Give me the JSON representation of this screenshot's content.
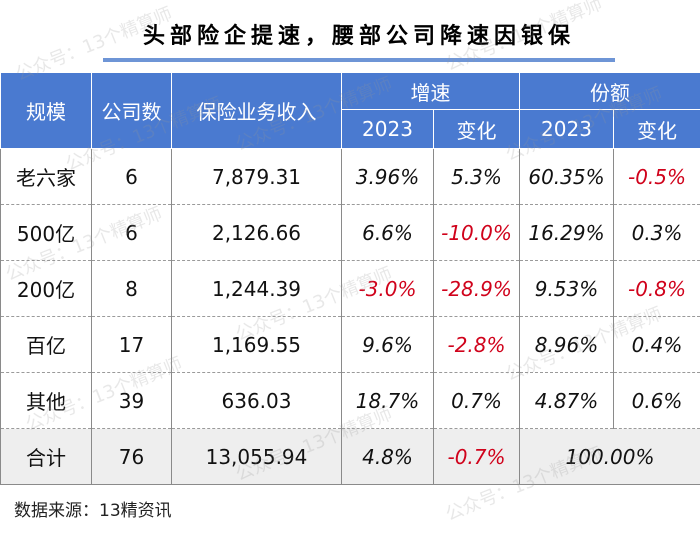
{
  "title": "头部险企提速，腰部公司降速因银保",
  "table": {
    "headers": {
      "scale": "规模",
      "company_count": "公司数",
      "premium_income": "保险业务收入",
      "growth_group": "增速",
      "share_group": "份额",
      "year": "2023",
      "change": "变化"
    },
    "rows": [
      {
        "scale": "老六家",
        "count": "6",
        "income": "7,879.31",
        "growth": "3.96%",
        "growth_change": "5.3%",
        "share": "60.35%",
        "share_change": "-0.5%"
      },
      {
        "scale": "500亿",
        "count": "6",
        "income": "2,126.66",
        "growth": "6.6%",
        "growth_change": "-10.0%",
        "share": "16.29%",
        "share_change": "0.3%"
      },
      {
        "scale": "200亿",
        "count": "8",
        "income": "1,244.39",
        "growth": "-3.0%",
        "growth_change": "-28.9%",
        "share": "9.53%",
        "share_change": "-0.8%"
      },
      {
        "scale": "百亿",
        "count": "17",
        "income": "1,169.55",
        "growth": "9.6%",
        "growth_change": "-2.8%",
        "share": "8.96%",
        "share_change": "0.4%"
      },
      {
        "scale": "其他",
        "count": "39",
        "income": "636.03",
        "growth": "18.7%",
        "growth_change": "0.7%",
        "share": "4.87%",
        "share_change": "0.6%"
      }
    ],
    "total": {
      "scale": "合计",
      "count": "76",
      "income": "13,055.94",
      "growth": "4.8%",
      "growth_change": "-0.7%",
      "share": "100.00%"
    }
  },
  "source": "数据来源：13精资讯",
  "watermark": "公众号：13个精算师",
  "colors": {
    "header_bg": "#4a7ad0",
    "negative": "#d0021b",
    "title_underline": "#6e95d6",
    "total_bg": "#eeeeee"
  }
}
